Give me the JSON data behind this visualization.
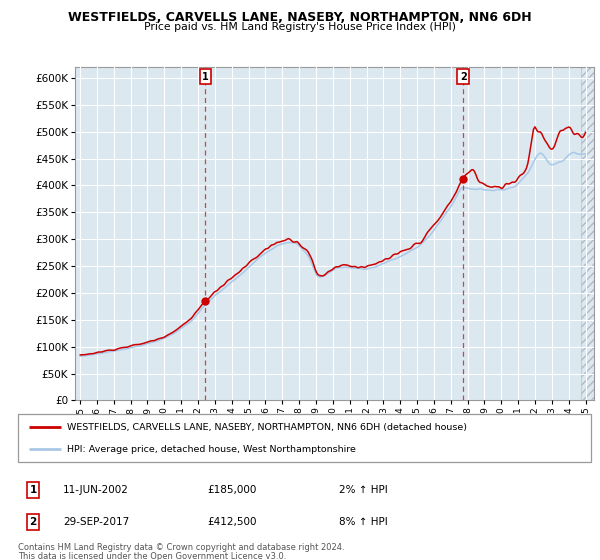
{
  "title": "WESTFIELDS, CARVELLS LANE, NASEBY, NORTHAMPTON, NN6 6DH",
  "subtitle": "Price paid vs. HM Land Registry's House Price Index (HPI)",
  "hpi_color": "#a8c8e8",
  "price_color": "#cc0000",
  "bg_color": "#dce8f0",
  "sale1_date": 2002.44,
  "sale1_price": 185000,
  "sale2_date": 2017.74,
  "sale2_price": 412500,
  "ylim": [
    0,
    620000
  ],
  "xlim": [
    1994.7,
    2025.5
  ],
  "legend_line1": "WESTFIELDS, CARVELLS LANE, NASEBY, NORTHAMPTON, NN6 6DH (detached house)",
  "legend_line2": "HPI: Average price, detached house, West Northamptonshire",
  "table_row1": [
    "1",
    "11-JUN-2002",
    "£185,000",
    "2% ↑ HPI"
  ],
  "table_row2": [
    "2",
    "29-SEP-2017",
    "£412,500",
    "8% ↑ HPI"
  ],
  "footnote1": "Contains HM Land Registry data © Crown copyright and database right 2024.",
  "footnote2": "This data is licensed under the Open Government Licence v3.0."
}
